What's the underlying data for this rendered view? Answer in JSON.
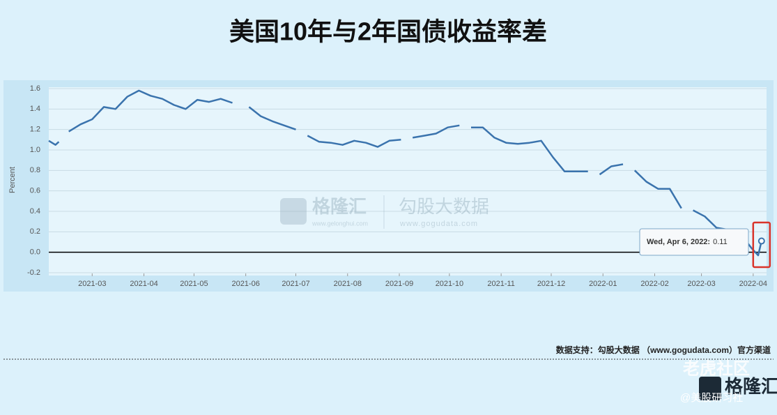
{
  "chart_data": {
    "type": "line",
    "title": "美国10年与2年国债收益率差",
    "ylabel": "Percent",
    "color": "#3a73ad",
    "x": [
      "2021-02-03",
      "2021-02-07",
      "2021-02-09",
      "2021-02-12",
      "2021-02-15",
      "2021-02-22",
      "2021-03-01",
      "2021-03-08",
      "2021-03-15",
      "2021-03-22",
      "2021-03-29",
      "2021-04-05",
      "2021-04-12",
      "2021-04-19",
      "2021-04-26",
      "2021-05-03",
      "2021-05-10",
      "2021-05-17",
      "2021-05-24",
      "2021-05-31",
      "2021-06-03",
      "2021-06-10",
      "2021-06-17",
      "2021-06-24",
      "2021-07-01",
      "2021-07-05",
      "2021-07-08",
      "2021-07-15",
      "2021-07-22",
      "2021-07-29",
      "2021-08-05",
      "2021-08-12",
      "2021-08-19",
      "2021-08-26",
      "2021-09-02",
      "2021-09-06",
      "2021-09-09",
      "2021-09-16",
      "2021-09-23",
      "2021-09-30",
      "2021-10-07",
      "2021-10-11",
      "2021-10-14",
      "2021-10-21",
      "2021-10-28",
      "2021-11-04",
      "2021-11-11",
      "2021-11-18",
      "2021-11-25",
      "2021-12-02",
      "2021-12-09",
      "2021-12-16",
      "2021-12-23",
      "2021-12-27",
      "2021-12-30",
      "2022-01-06",
      "2022-01-13",
      "2022-01-17",
      "2022-01-20",
      "2022-01-27",
      "2022-02-03",
      "2022-02-10",
      "2022-02-17",
      "2022-02-21",
      "2022-02-24",
      "2022-03-03",
      "2022-03-10",
      "2022-03-17",
      "2022-03-24",
      "2022-03-31",
      "2022-04-04",
      "2022-04-06"
    ],
    "values": [
      1.09,
      1.05,
      1.08,
      null,
      1.18,
      1.25,
      1.3,
      1.42,
      1.4,
      1.52,
      1.58,
      1.53,
      1.5,
      1.44,
      1.4,
      1.49,
      1.47,
      1.5,
      1.46,
      null,
      1.42,
      1.33,
      1.28,
      1.24,
      1.2,
      null,
      1.14,
      1.08,
      1.07,
      1.05,
      1.09,
      1.07,
      1.03,
      1.09,
      1.1,
      null,
      1.12,
      1.14,
      1.16,
      1.22,
      1.24,
      null,
      1.22,
      1.22,
      1.12,
      1.07,
      1.06,
      1.07,
      1.09,
      0.93,
      0.79,
      0.79,
      0.79,
      null,
      0.76,
      0.84,
      0.86,
      null,
      0.8,
      0.69,
      0.62,
      0.62,
      0.43,
      null,
      0.41,
      0.35,
      0.24,
      0.22,
      0.19,
      0.04,
      -0.03,
      0.11
    ],
    "xlim": [
      "2021-02-03",
      "2022-04-09"
    ],
    "xticks": [
      {
        "value": "2021-03-01",
        "label": "2021-03"
      },
      {
        "value": "2021-04-01",
        "label": "2021-04"
      },
      {
        "value": "2021-05-01",
        "label": "2021-05"
      },
      {
        "value": "2021-06-01",
        "label": "2021-06"
      },
      {
        "value": "2021-07-01",
        "label": "2021-07"
      },
      {
        "value": "2021-08-01",
        "label": "2021-08"
      },
      {
        "value": "2021-09-01",
        "label": "2021-09"
      },
      {
        "value": "2021-10-01",
        "label": "2021-10"
      },
      {
        "value": "2021-11-01",
        "label": "2021-11"
      },
      {
        "value": "2021-12-01",
        "label": "2021-12"
      },
      {
        "value": "2022-01-01",
        "label": "2022-01"
      },
      {
        "value": "2022-02-01",
        "label": "2022-02"
      },
      {
        "value": "2022-03-01",
        "label": "2022-03"
      },
      {
        "value": "2022-04-01",
        "label": "2022-04"
      }
    ],
    "ylim": [
      -0.2,
      1.6
    ],
    "yticks": [
      -0.2,
      {
        "value": 0,
        "label": "0.0"
      },
      0.2,
      0.4,
      0.6,
      0.8,
      {
        "value": 1,
        "label": "1.0"
      },
      1.2,
      1.4,
      1.6
    ],
    "grid": true,
    "tooltip": {
      "label": "Wed, Apr 6, 2022:",
      "value": 0.11
    }
  },
  "watermark": {
    "brand": "格隆汇",
    "brand_url": "www.gelonghui.com",
    "data_brand": "勾股大数据",
    "data_url": "www.gogudata.com"
  },
  "footer": {
    "source": "数据支持：勾股大数据 （www.gogudata.com）官方渠道",
    "community": "老虎社区",
    "author": "@美股研习社",
    "logo": "格隆汇"
  }
}
